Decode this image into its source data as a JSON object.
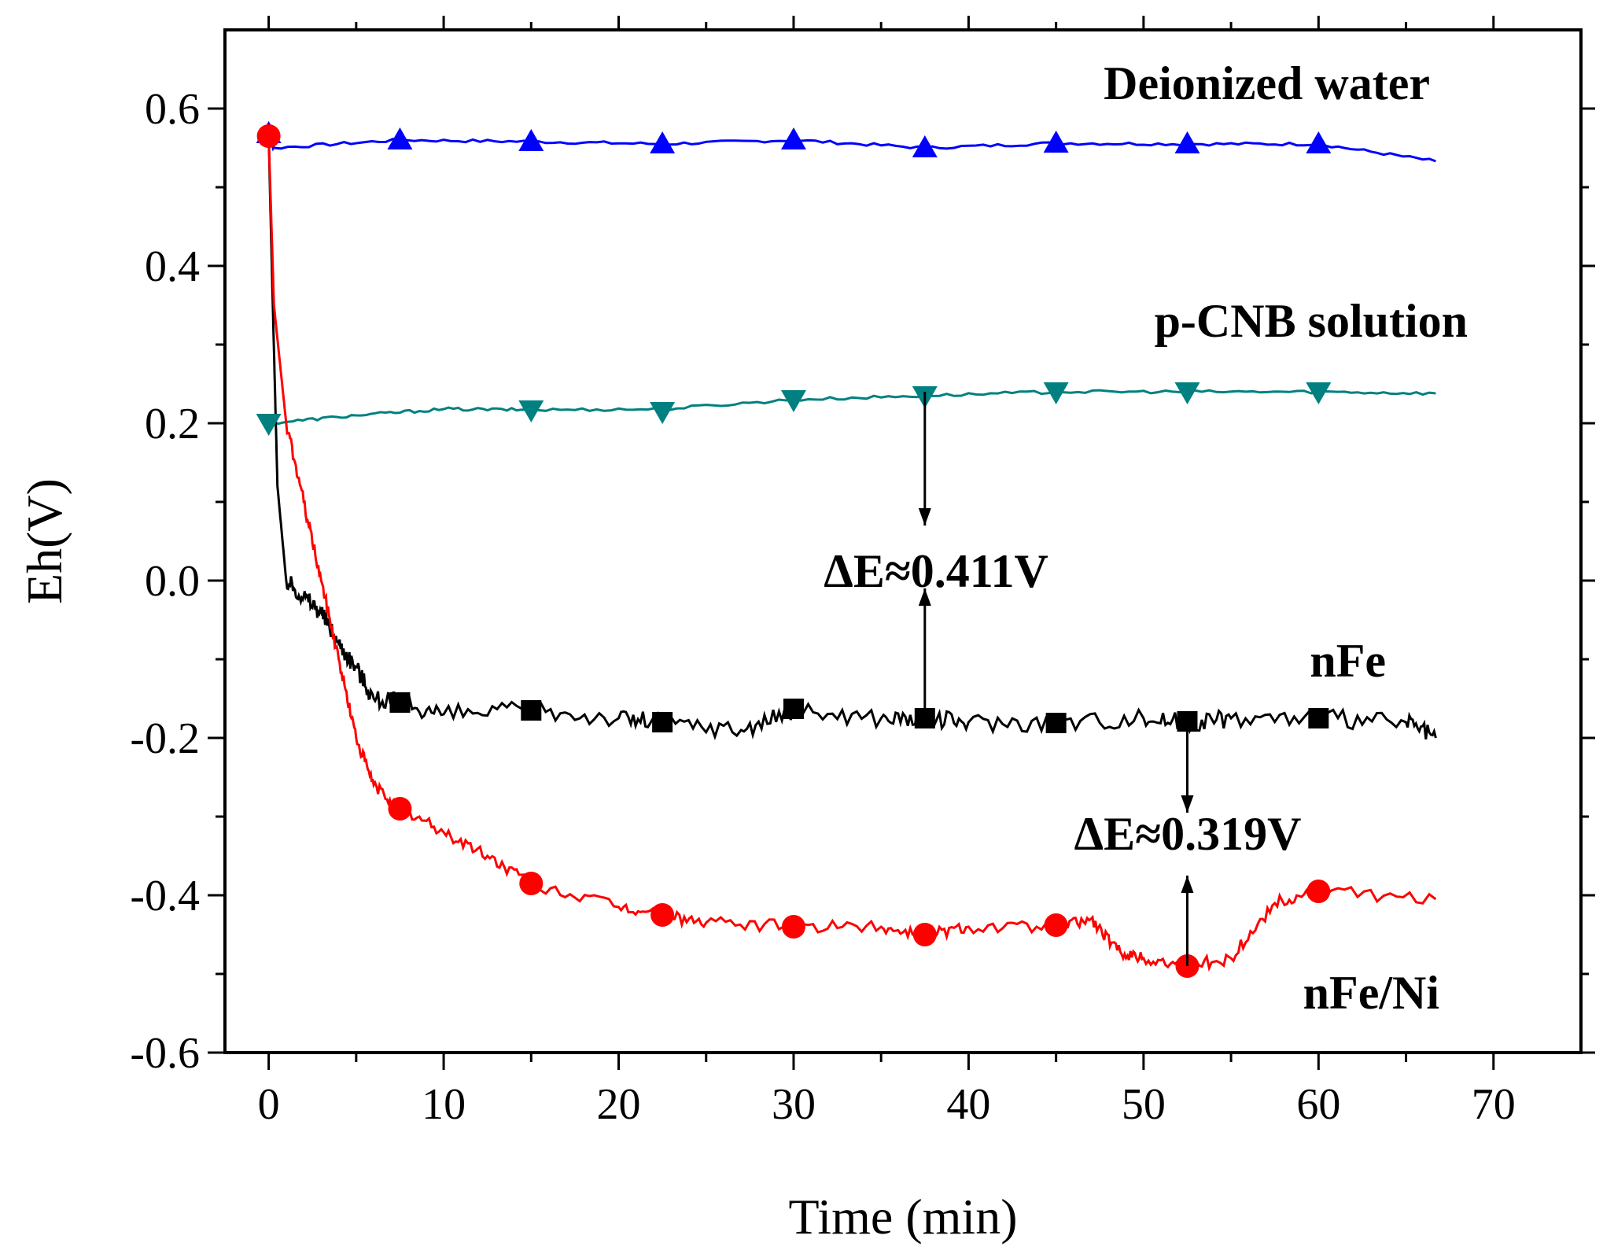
{
  "chart_data": {
    "type": "line",
    "title": "",
    "xlabel": "Time (min)",
    "ylabel": "Eh(V)",
    "xlim": [
      -2.5,
      75
    ],
    "ylim": [
      -0.6,
      0.7
    ],
    "xticks": [
      0,
      10,
      20,
      30,
      40,
      50,
      60,
      70
    ],
    "xtick_labels": [
      "0",
      "10",
      "20",
      "30",
      "40",
      "50",
      "60",
      "70"
    ],
    "yticks": [
      -0.6,
      -0.4,
      -0.2,
      0.0,
      0.2,
      0.4,
      0.6
    ],
    "ytick_labels": [
      "-0.6",
      "-0.4",
      "-0.2",
      "0.0",
      "0.2",
      "0.4",
      "0.6"
    ],
    "grid": false,
    "series": [
      {
        "name": "Deionized water",
        "color": "#0000ff",
        "marker": "triangle-up",
        "x": [
          0,
          0.3,
          7.5,
          15,
          22.5,
          30,
          37.5,
          45,
          52.5,
          60,
          66.7
        ],
        "values": [
          0.565,
          0.55,
          0.56,
          0.558,
          0.555,
          0.56,
          0.55,
          0.556,
          0.555,
          0.555,
          0.533
        ],
        "marker_x": [
          0,
          7.5,
          15,
          22.5,
          30,
          37.5,
          45,
          52.5,
          60
        ],
        "marker_values": [
          0.568,
          0.56,
          0.558,
          0.555,
          0.56,
          0.55,
          0.556,
          0.555,
          0.555
        ]
      },
      {
        "name": "p-CNB solution",
        "color": "#008080",
        "marker": "triangle-down",
        "x": [
          0,
          5,
          10,
          15,
          22.5,
          30,
          37.5,
          45,
          52.5,
          60,
          66.7
        ],
        "values": [
          0.2,
          0.21,
          0.218,
          0.217,
          0.218,
          0.23,
          0.235,
          0.24,
          0.24,
          0.24,
          0.238
        ],
        "marker_x": [
          0,
          15,
          22.5,
          30,
          37.5,
          45,
          52.5,
          60
        ],
        "marker_values": [
          0.2,
          0.217,
          0.215,
          0.23,
          0.235,
          0.24,
          0.24,
          0.24
        ]
      },
      {
        "name": "nFe",
        "color": "#000000",
        "marker": "square",
        "x": [
          0,
          0.2,
          0.5,
          1,
          2,
          3,
          4,
          5,
          6,
          7.5,
          10,
          15,
          20,
          22.5,
          27,
          30,
          35,
          37.5,
          40,
          45,
          50,
          52.5,
          55,
          60,
          65,
          66.7
        ],
        "values": [
          0.565,
          0.38,
          0.12,
          0.0,
          -0.02,
          -0.04,
          -0.08,
          -0.11,
          -0.15,
          -0.155,
          -0.17,
          -0.165,
          -0.175,
          -0.18,
          -0.19,
          -0.165,
          -0.175,
          -0.175,
          -0.18,
          -0.18,
          -0.175,
          -0.18,
          -0.175,
          -0.175,
          -0.18,
          -0.2
        ],
        "marker_x": [
          7.5,
          15,
          22.5,
          30,
          37.5,
          45,
          52.5,
          60
        ],
        "marker_values": [
          -0.155,
          -0.165,
          -0.18,
          -0.163,
          -0.175,
          -0.181,
          -0.179,
          -0.175
        ]
      },
      {
        "name": "nFe/Ni",
        "color": "#ff0000",
        "marker": "circle",
        "x": [
          0,
          0.3,
          1,
          2,
          3,
          4,
          5,
          6,
          7.5,
          10,
          12.5,
          15,
          20,
          22.5,
          25,
          30,
          35,
          37.5,
          40,
          45,
          47,
          48.5,
          50,
          52.5,
          55,
          57.5,
          60,
          66.7
        ],
        "values": [
          0.565,
          0.35,
          0.2,
          0.1,
          0.0,
          -0.1,
          -0.2,
          -0.26,
          -0.29,
          -0.32,
          -0.35,
          -0.385,
          -0.415,
          -0.425,
          -0.435,
          -0.44,
          -0.44,
          -0.45,
          -0.44,
          -0.44,
          -0.43,
          -0.47,
          -0.48,
          -0.49,
          -0.48,
          -0.41,
          -0.395,
          -0.405
        ],
        "marker_x": [
          0,
          7.5,
          15,
          22.5,
          30,
          37.5,
          45,
          52.5,
          60
        ],
        "marker_values": [
          0.565,
          -0.29,
          -0.385,
          -0.425,
          -0.44,
          -0.45,
          -0.438,
          -0.49,
          -0.395
        ]
      }
    ],
    "annotations": [
      {
        "text": "ΔE≈0.411V",
        "x_from": 37.5,
        "y_from": 0.24,
        "x_to": 37.5,
        "y_to": -0.18
      },
      {
        "text": "ΔE≈0.319V",
        "x_from": 52.5,
        "y_from": -0.18,
        "x_to": 52.5,
        "y_to": -0.49
      }
    ],
    "legend_placement": "inline labels near each curve"
  }
}
